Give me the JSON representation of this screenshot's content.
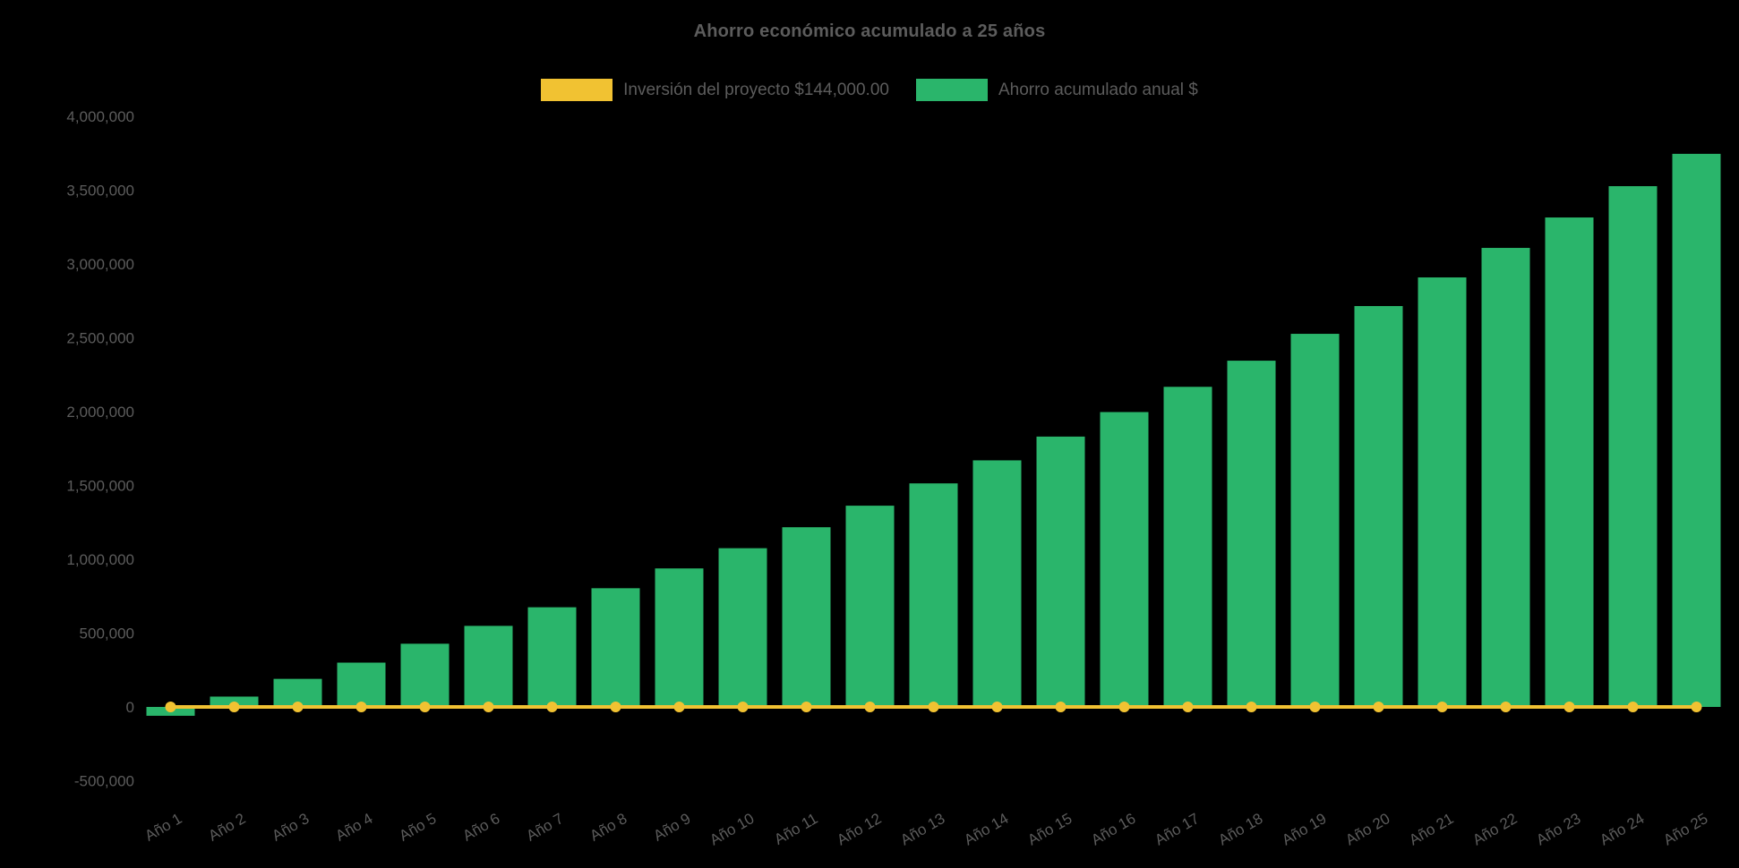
{
  "chart_data": {
    "type": "bar",
    "title": "Ahorro económico acumulado a 25 años",
    "categories": [
      "Año 1",
      "Año 2",
      "Año 3",
      "Año 4",
      "Año 5",
      "Año 6",
      "Año 7",
      "Año 8",
      "Año 9",
      "Año 10",
      "Año 11",
      "Año 12",
      "Año 13",
      "Año 14",
      "Año 15",
      "Año 16",
      "Año 17",
      "Año 18",
      "Año 19",
      "Año 20",
      "Año 21",
      "Año 22",
      "Año 23",
      "Año 24",
      "Año 25"
    ],
    "series": [
      {
        "name": "Inversión del proyecto $144,000.00",
        "type": "line",
        "color": "#F1C232",
        "plotted_value": 0
      },
      {
        "name": "Ahorro acumulado anual $",
        "type": "bar",
        "color": "#2AB56B",
        "values": [
          -60000,
          70000,
          190000,
          300000,
          428000,
          549000,
          675000,
          804000,
          938000,
          1075000,
          1217000,
          1363000,
          1514000,
          1670000,
          1831000,
          1997000,
          2168000,
          2345000,
          2527000,
          2715000,
          2909000,
          3109000,
          3315000,
          3527000,
          3746000
        ]
      }
    ],
    "ylim": [
      -500000,
      4000000
    ],
    "ytick_step": 500000,
    "ytick_labels": [
      "-500,000",
      "0",
      "500,000",
      "1,000,000",
      "1,500,000",
      "2,000,000",
      "2,500,000",
      "3,000,000",
      "3,500,000",
      "4,000,000"
    ],
    "grid": false,
    "legend_position": "top",
    "xlabel": "",
    "ylabel": "",
    "x_label_rotation_deg": -30,
    "background": "#000000",
    "text_color": "#5C5C5C"
  }
}
